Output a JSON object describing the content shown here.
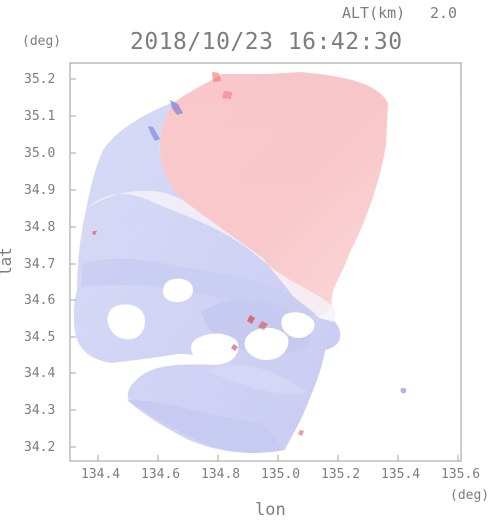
{
  "header": {
    "altitude_label": "ALT(km)",
    "altitude_value": "2.0",
    "timestamp": "2018/10/23 16:42:30",
    "deg_left": "(deg)",
    "deg_right": "(deg)"
  },
  "axes": {
    "xlabel": "lon",
    "ylabel": "lat",
    "x_ticks": [
      "134.4",
      "134.6",
      "134.8",
      "135.0",
      "135.2",
      "135.4",
      "135.6"
    ],
    "y_ticks": [
      "35.2",
      "35.1",
      "35.0",
      "34.9",
      "34.8",
      "34.7",
      "34.6",
      "34.5",
      "34.4",
      "34.3",
      "34.2"
    ]
  },
  "map_style": {
    "background": "#ffffff",
    "frame": "#a8a8a8",
    "tick_text": "#7d7d7d",
    "blue_field": "#c9cdf3",
    "red_field": "#f7c4c6",
    "white_transition": "#f2f2f7"
  },
  "chart_data": {
    "type": "heatmap",
    "title": "2018/10/23 16:42:30",
    "xlabel": "lon",
    "ylabel": "lat",
    "xlim": [
      134.3,
      135.6
    ],
    "ylim": [
      34.17,
      35.25
    ],
    "x_ticks": [
      134.4,
      134.6,
      134.8,
      135.0,
      135.2,
      135.4,
      135.6
    ],
    "y_ticks": [
      35.2,
      35.1,
      35.0,
      34.9,
      34.8,
      34.7,
      34.6,
      34.5,
      34.4,
      34.3,
      34.2
    ],
    "grid": false
  }
}
